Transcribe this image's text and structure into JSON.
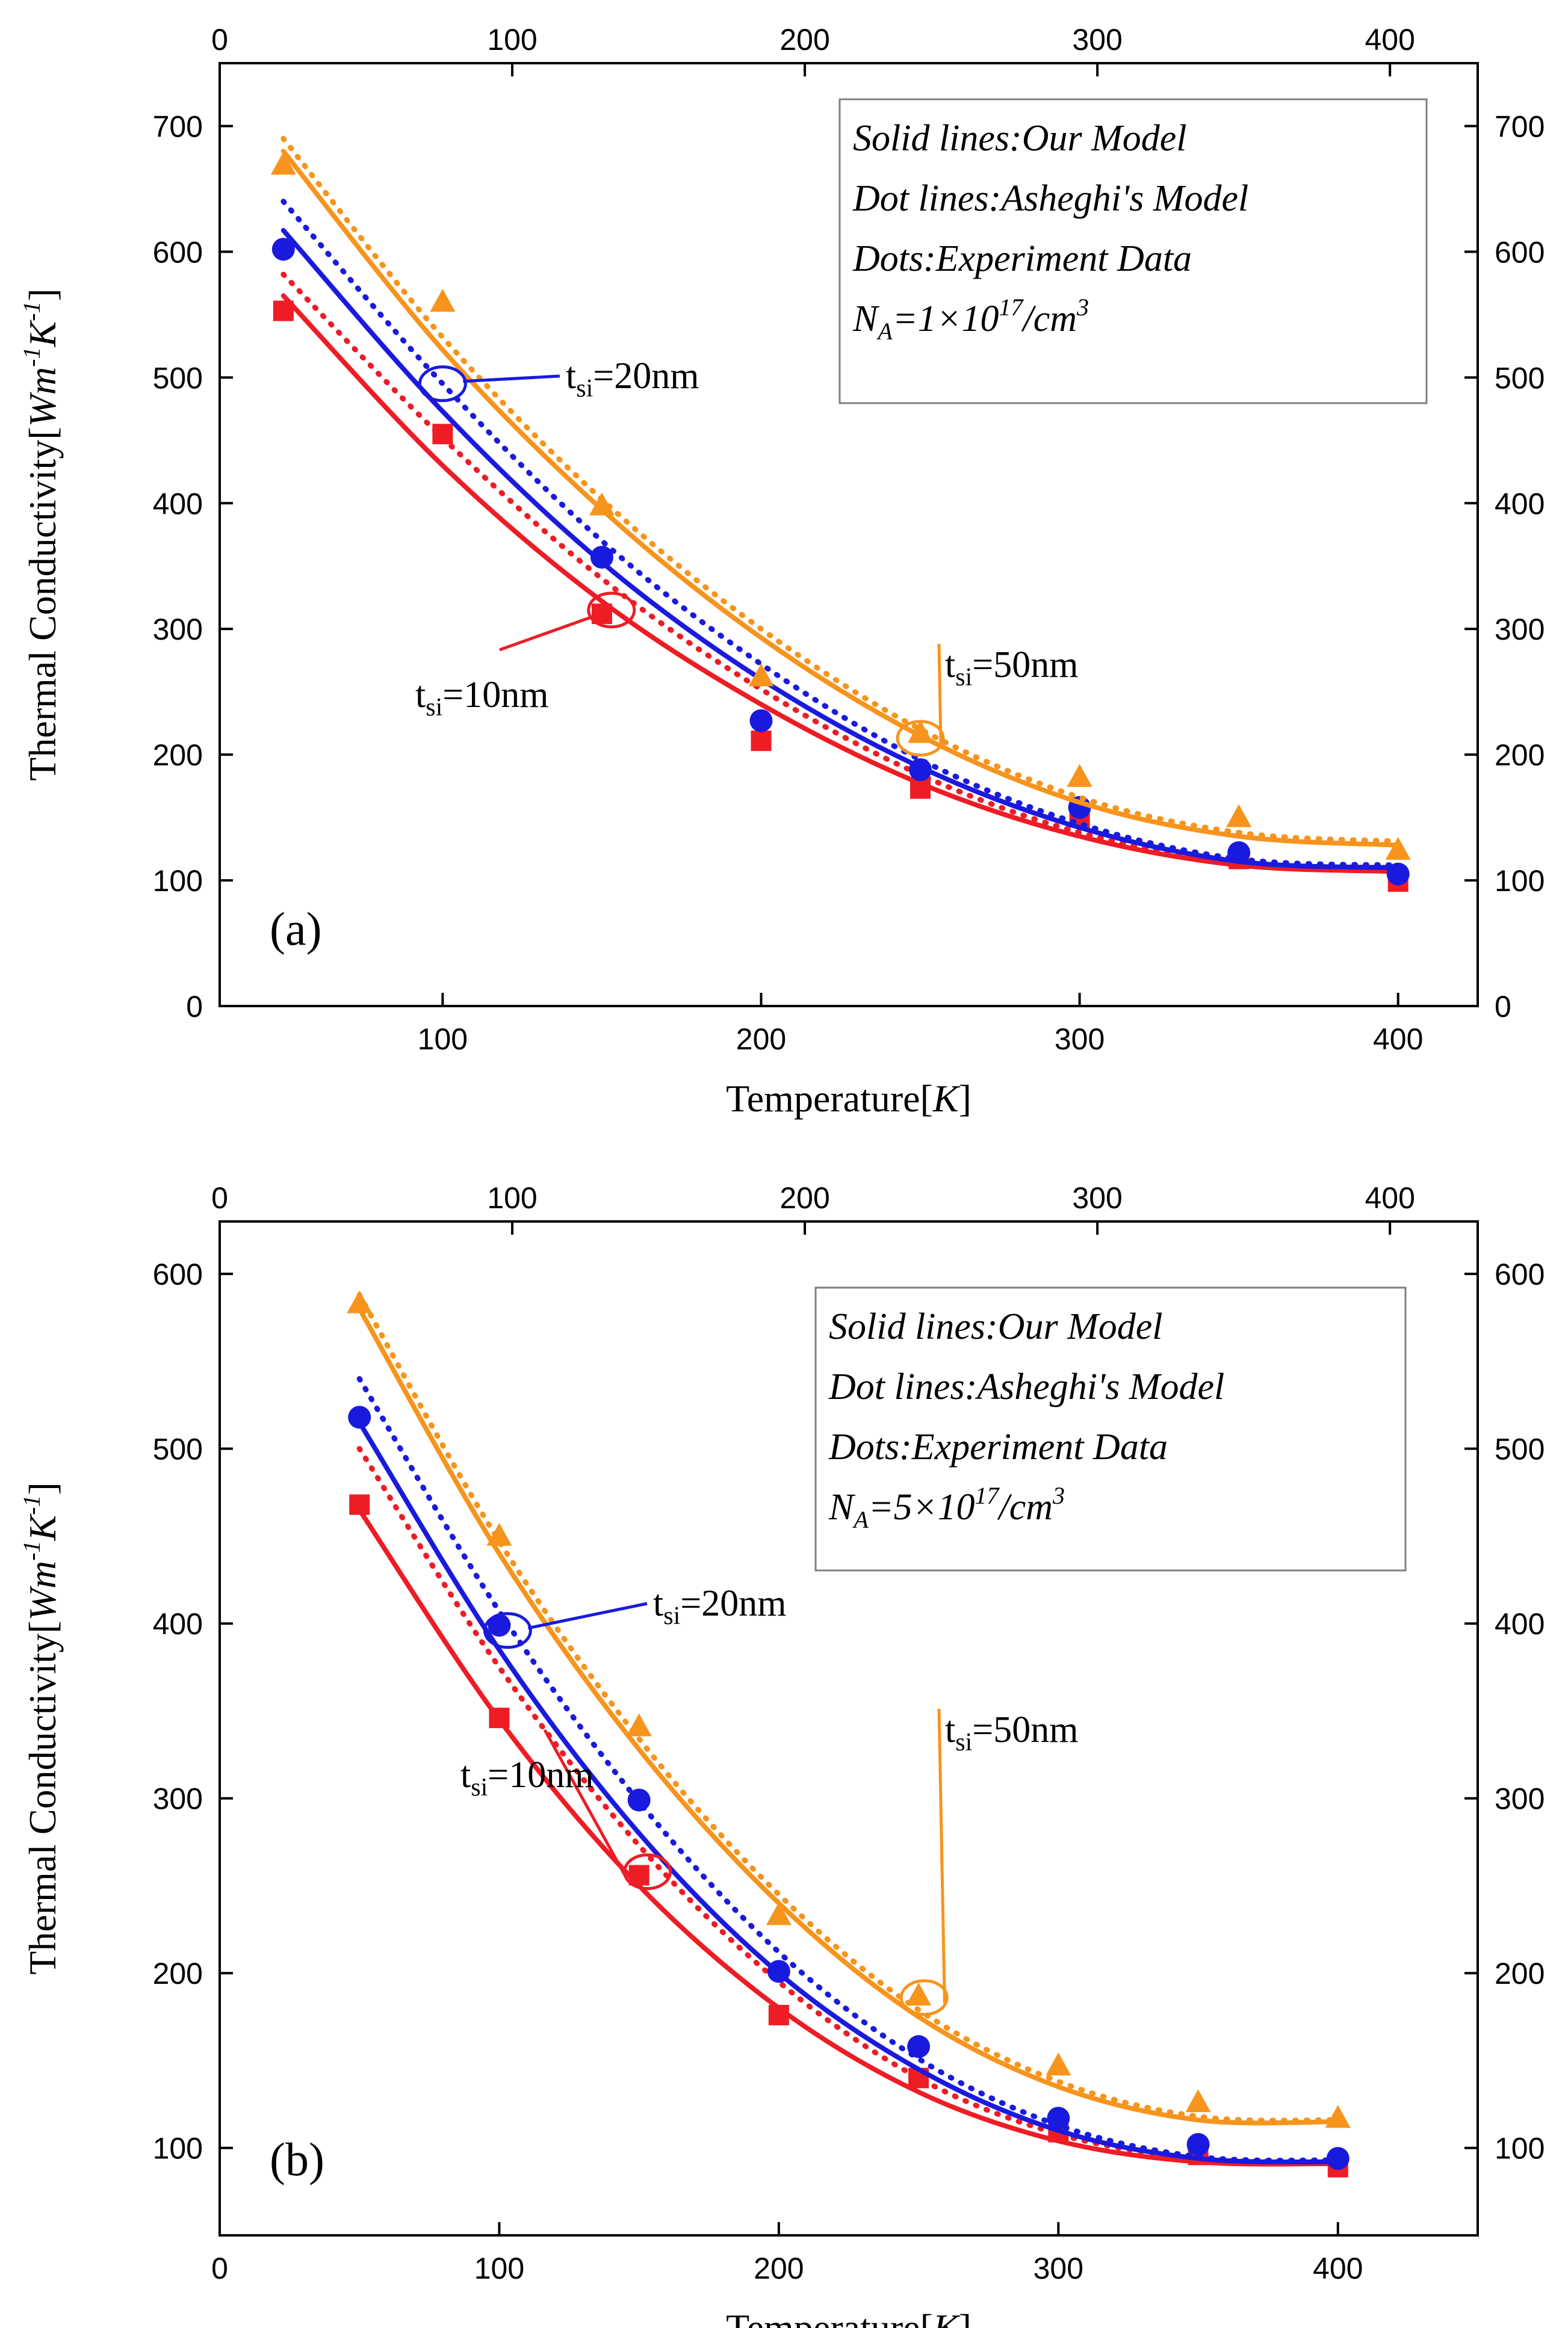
{
  "colors": {
    "red": "#ee1c25",
    "blue": "#1a1adf",
    "orange": "#f7941d",
    "axis": "#000000"
  },
  "chart_data": [
    {
      "type": "line",
      "panel_label": "(a)",
      "xlabel": "Temperature[K]",
      "ylabel": "Thermal Conductivity[Wm⁻¹K⁻¹]",
      "xlim": [
        30,
        425
      ],
      "ylim": [
        0,
        750
      ],
      "xticks_bottom": [
        100,
        200,
        300,
        400
      ],
      "xticks_top": [
        0,
        100,
        200,
        300,
        400
      ],
      "top_axis_xlim": [
        0,
        430
      ],
      "yticks": [
        0,
        100,
        200,
        300,
        400,
        500,
        600,
        700
      ],
      "legend_box": [
        "Solid lines:Our Model",
        "Dot lines:Asheghi's Model",
        "Dots:Experiment Data",
        "N_A=1×10¹⁷/cm³"
      ],
      "legend_na": {
        "base": "N",
        "sub": "A",
        "mid": "=1×10",
        "exp": "17",
        "unit": "/cm",
        "unit_exp": "3"
      },
      "annotations": [
        {
          "label": "t_si=20nm",
          "base": "t",
          "sub": "si",
          "rest": "=20nm",
          "series": "tsi=20nm",
          "at": [
            100,
            495
          ]
        },
        {
          "label": "t_si=10nm",
          "base": "t",
          "sub": "si",
          "rest": "=10nm",
          "series": "tsi=10nm",
          "at": [
            153,
            315
          ]
        },
        {
          "label": "t_si=50nm",
          "base": "t",
          "sub": "si",
          "rest": "=50nm",
          "series": "tsi=50nm",
          "at": [
            250,
            213
          ]
        }
      ],
      "series": [
        {
          "name": "tsi=10nm",
          "color": "red",
          "marker": "square",
          "experiment": {
            "x": [
              50,
              100,
              150,
              200,
              250,
              300,
              350,
              400
            ],
            "y": [
              553,
              455,
              312,
              211,
              173,
              150,
              117,
              99
            ]
          },
          "our_model": {
            "x": [
              50,
              100,
              150,
              200,
              250,
              300,
              350,
              400
            ],
            "y": [
              565,
              430,
              322,
              240,
              177,
              135,
              112,
              107
            ]
          },
          "asheghi_model": {
            "x": [
              50,
              100,
              150,
              200,
              250,
              300,
              350,
              400
            ],
            "y": [
              582,
              452,
              340,
              252,
              184,
              138,
              114,
              110
            ]
          }
        },
        {
          "name": "tsi=20nm",
          "color": "blue",
          "marker": "circle",
          "experiment": {
            "x": [
              50,
              150,
              200,
              250,
              300,
              350,
              400
            ],
            "y": [
              602,
              357,
              227,
              188,
              158,
              122,
              105
            ]
          },
          "our_model": {
            "x": [
              50,
              100,
              150,
              200,
              250,
              300,
              350,
              400
            ],
            "y": [
              617,
              473,
              353,
              260,
              190,
              142,
              115,
              110
            ]
          },
          "asheghi_model": {
            "x": [
              50,
              100,
              150,
              200,
              250,
              300,
              350,
              400
            ],
            "y": [
              640,
              495,
              370,
              272,
              196,
              145,
              117,
              112
            ]
          }
        },
        {
          "name": "tsi=50nm",
          "color": "orange",
          "marker": "triangle",
          "experiment": {
            "x": [
              50,
              100,
              150,
              200,
              250,
              300,
              350,
              400
            ],
            "y": [
              669,
              560,
              398,
              262,
              217,
              182,
              150,
              124
            ]
          },
          "our_model": {
            "x": [
              50,
              100,
              150,
              200,
              250,
              300,
              350,
              400
            ],
            "y": [
              680,
              522,
              395,
              293,
              215,
              162,
              135,
              128
            ]
          },
          "asheghi_model": {
            "x": [
              50,
              100,
              150,
              200,
              250,
              300,
              350,
              400
            ],
            "y": [
              690,
              532,
              403,
              300,
              220,
              166,
              138,
              131
            ]
          }
        }
      ]
    },
    {
      "type": "line",
      "panel_label": "(b)",
      "xlabel": "Temperature[K]",
      "ylabel": "Thermal Conductivity[Wm⁻¹K⁻¹]",
      "xlim": [
        0,
        450
      ],
      "ylim": [
        50,
        630
      ],
      "xticks_bottom": [
        0,
        100,
        200,
        300,
        400
      ],
      "xticks_top": [
        0,
        100,
        200,
        300,
        400
      ],
      "top_axis_xlim": [
        0,
        430
      ],
      "yticks": [
        100,
        200,
        300,
        400,
        500,
        600
      ],
      "legend_box": [
        "Solid lines:Our Model",
        "Dot lines:Asheghi's Model",
        "Dots:Experiment Data",
        "N_A=5×10¹⁷/cm³"
      ],
      "legend_na": {
        "base": "N",
        "sub": "A",
        "mid": "=5×10",
        "exp": "17",
        "unit": "/cm",
        "unit_exp": "3"
      },
      "annotations": [
        {
          "label": "t_si=20nm",
          "base": "t",
          "sub": "si",
          "rest": "=20nm",
          "series": "tsi=20nm",
          "at": [
            103,
            396
          ]
        },
        {
          "label": "t_si=10nm",
          "base": "t",
          "sub": "si",
          "rest": "=10nm",
          "series": "tsi=10nm",
          "at": [
            153,
            258
          ]
        },
        {
          "label": "t_si=50nm",
          "base": "t",
          "sub": "si",
          "rest": "=50nm",
          "series": "tsi=50nm",
          "at": [
            252,
            186
          ]
        }
      ],
      "series": [
        {
          "name": "tsi=10nm",
          "color": "red",
          "marker": "square",
          "experiment": {
            "x": [
              50,
              100,
              150,
              200,
              250,
              300,
              350,
              400
            ],
            "y": [
              468,
              346,
              256,
              176,
              140,
              109,
              96,
              89
            ]
          },
          "our_model": {
            "x": [
              50,
              100,
              150,
              200,
              250,
              300,
              350,
              400
            ],
            "y": [
              465,
              345,
              250,
              180,
              132,
              104,
              92,
              91
            ]
          },
          "asheghi_model": {
            "x": [
              50,
              100,
              150,
              200,
              250,
              300,
              350,
              400
            ],
            "y": [
              500,
              375,
              273,
              195,
              140,
              108,
              94,
              92
            ]
          }
        },
        {
          "name": "tsi=20nm",
          "color": "blue",
          "marker": "circle",
          "experiment": {
            "x": [
              50,
              100,
              150,
              200,
              250,
              300,
              350,
              400
            ],
            "y": [
              518,
              399,
              299,
              201,
              158,
              117,
              102,
              94
            ]
          },
          "our_model": {
            "x": [
              50,
              100,
              150,
              200,
              250,
              300,
              350,
              400
            ],
            "y": [
              515,
              385,
              280,
              200,
              145,
              110,
              94,
              92
            ]
          },
          "asheghi_model": {
            "x": [
              50,
              100,
              150,
              200,
              250,
              300,
              350,
              400
            ],
            "y": [
              540,
              407,
              298,
              212,
              151,
              113,
              95,
              93
            ]
          }
        },
        {
          "name": "tsi=50nm",
          "color": "orange",
          "marker": "triangle",
          "experiment": {
            "x": [
              50,
              100,
              150,
              200,
              250,
              300,
              350,
              400
            ],
            "y": [
              583,
              450,
              341,
              233,
              187,
              147,
              126,
              117
            ]
          },
          "our_model": {
            "x": [
              50,
              100,
              150,
              200,
              250,
              300,
              350,
              400
            ],
            "y": [
              580,
              440,
              328,
              240,
              175,
              135,
              116,
              115
            ]
          },
          "asheghi_model": {
            "x": [
              50,
              100,
              150,
              200,
              250,
              300,
              350,
              400
            ],
            "y": [
              588,
              447,
              334,
              245,
              179,
              138,
              118,
              116
            ]
          }
        }
      ]
    }
  ]
}
